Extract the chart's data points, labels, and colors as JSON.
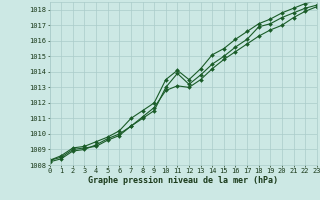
{
  "xlabel": "Graphe pression niveau de la mer (hPa)",
  "ylim": [
    1008,
    1018.5
  ],
  "xlim": [
    0,
    23
  ],
  "xticks": [
    0,
    1,
    2,
    3,
    4,
    5,
    6,
    7,
    8,
    9,
    10,
    11,
    12,
    13,
    14,
    15,
    16,
    17,
    18,
    19,
    20,
    21,
    22,
    23
  ],
  "yticks": [
    1008,
    1009,
    1010,
    1011,
    1012,
    1013,
    1014,
    1015,
    1016,
    1017,
    1018
  ],
  "bg_color": "#cce8e4",
  "grid_color": "#aaccca",
  "line_color": "#1a5c28",
  "series": [
    [
      1008.3,
      1008.5,
      1009.0,
      1009.1,
      1009.2,
      1009.6,
      1009.9,
      1010.5,
      1011.0,
      1011.5,
      1013.0,
      1013.9,
      1013.2,
      1013.8,
      1014.5,
      1015.0,
      1015.6,
      1016.1,
      1016.9,
      1017.1,
      1017.5,
      1017.8,
      1018.1,
      1018.3
    ],
    [
      1008.2,
      1008.4,
      1008.9,
      1009.0,
      1009.3,
      1009.7,
      1010.0,
      1010.5,
      1011.1,
      1011.7,
      1012.8,
      1013.1,
      1013.0,
      1013.5,
      1014.2,
      1014.8,
      1015.3,
      1015.8,
      1016.3,
      1016.7,
      1017.0,
      1017.5,
      1017.9,
      1018.2
    ],
    [
      1008.3,
      1008.6,
      1009.1,
      1009.2,
      1009.5,
      1009.8,
      1010.2,
      1011.0,
      1011.5,
      1012.0,
      1013.5,
      1014.1,
      1013.5,
      1014.2,
      1015.1,
      1015.5,
      1016.1,
      1016.6,
      1017.1,
      1017.4,
      1017.8,
      1018.1,
      1018.4,
      1018.6
    ]
  ],
  "marker": "D",
  "markersize": 2.0,
  "linewidth": 0.8,
  "font_color": "#1a3a1a",
  "tick_fontsize": 5.0,
  "label_fontsize": 6.0
}
